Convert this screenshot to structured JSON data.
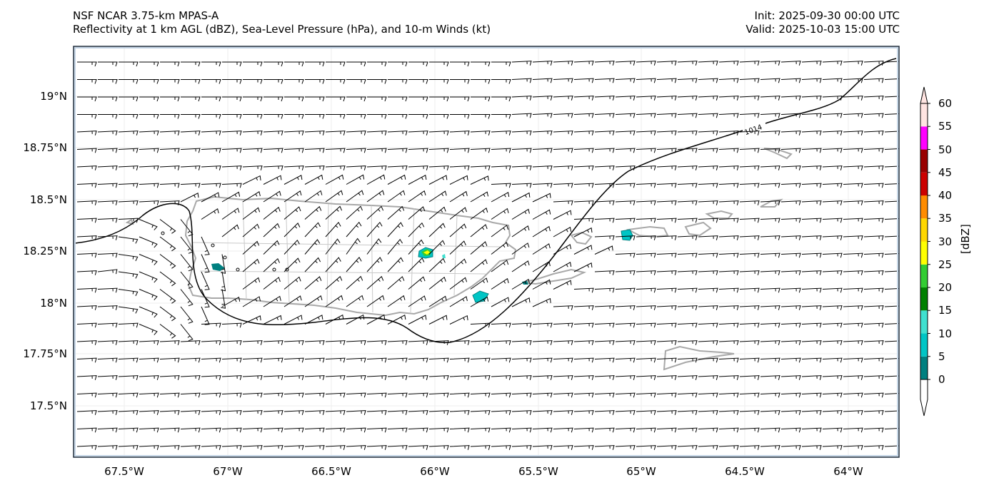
{
  "header": {
    "model": "NSF NCAR 3.75-km MPAS-A",
    "fields": "Reflectivity at 1 km AGL (dBZ), Sea-Level Pressure (hPa), and 10-m Winds (kt)",
    "init": "Init: 2025-09-30 00:00 UTC",
    "valid": "Valid: 2025-10-03 15:00 UTC"
  },
  "axes": {
    "lat_labels": [
      "19°N",
      "18.75°N",
      "18.5°N",
      "18.25°N",
      "18°N",
      "17.75°N",
      "17.5°N"
    ],
    "lon_labels": [
      "67.5°W",
      "67°W",
      "66.5°W",
      "66°W",
      "65.5°W",
      "65°W",
      "64.5°W",
      "64°W"
    ],
    "lat_range": [
      17.3,
      19.22
    ],
    "lon_range": [
      -67.75,
      -63.77
    ]
  },
  "colorbar": {
    "units": "[dBZ]",
    "ticks": [
      "60",
      "55",
      "50",
      "45",
      "40",
      "35",
      "30",
      "25",
      "20",
      "15",
      "10",
      "5",
      "0"
    ],
    "colors": [
      "#008080",
      "#00c5c5",
      "#40e0d0",
      "#008000",
      "#32cd32",
      "#ffff00",
      "#ffd700",
      "#ff8c00",
      "#cc0000",
      "#990000",
      "#ff00ff",
      "#ffe4e1"
    ]
  },
  "contours": {
    "isobar_label": "1014"
  },
  "colors": {
    "frame": "#1c2a3a",
    "coast": "#a8a8a8",
    "barb": "#000000",
    "isobar": "#000000"
  }
}
